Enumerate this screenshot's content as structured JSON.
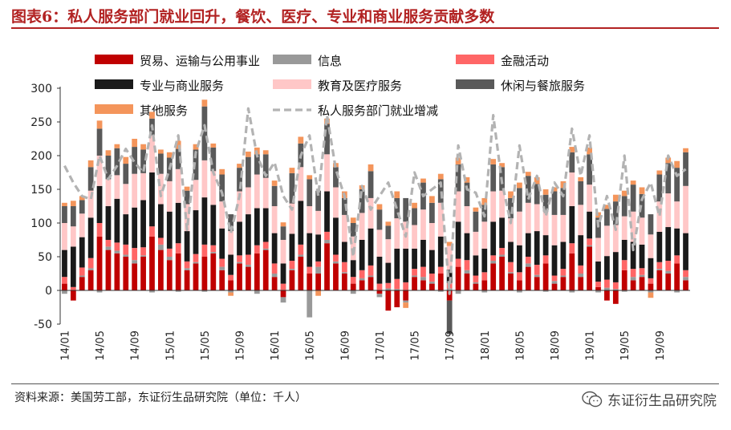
{
  "figure": {
    "title": "图表6：私人服务部门就业回升，餐饮、医疗、专业和商业服务贡献多数",
    "source": "资料来源：美国劳工部，东证衍生品研究院（单位：千人）",
    "watermark": "东证衍生品研究院"
  },
  "chart_data": {
    "type": "bar",
    "stacked": true,
    "ylim": [
      -50,
      300
    ],
    "yticks": [
      -50,
      0,
      50,
      100,
      150,
      200,
      250,
      300
    ],
    "xticks": [
      "14/01",
      "14/05",
      "14/09",
      "15/01",
      "15/05",
      "15/09",
      "16/01",
      "16/05",
      "16/09",
      "17/01",
      "17/05",
      "17/09",
      "18/01",
      "18/05",
      "18/09",
      "19/01",
      "19/05",
      "19/09"
    ],
    "xtick_every": 4,
    "categories": [
      "14/01",
      "14/02",
      "14/03",
      "14/04",
      "14/05",
      "14/06",
      "14/07",
      "14/08",
      "14/09",
      "14/10",
      "14/11",
      "14/12",
      "15/01",
      "15/02",
      "15/03",
      "15/04",
      "15/05",
      "15/06",
      "15/07",
      "15/08",
      "15/09",
      "15/10",
      "15/11",
      "15/12",
      "16/01",
      "16/02",
      "16/03",
      "16/04",
      "16/05",
      "16/06",
      "16/07",
      "16/08",
      "16/09",
      "16/10",
      "16/11",
      "16/12",
      "17/01",
      "17/02",
      "17/03",
      "17/04",
      "17/05",
      "17/06",
      "17/07",
      "17/08",
      "17/09",
      "17/10",
      "17/11",
      "17/12",
      "18/01",
      "18/02",
      "18/03",
      "18/04",
      "18/05",
      "18/06",
      "18/07",
      "18/08",
      "18/09",
      "18/10",
      "18/11",
      "18/12",
      "19/01",
      "19/02",
      "19/03",
      "19/04",
      "19/05",
      "19/06",
      "19/07",
      "19/08",
      "19/09",
      "19/10",
      "19/11",
      "19/12"
    ],
    "grid": false,
    "legend_position": "top",
    "series": [
      {
        "name": "贸易、运输与公用事业",
        "color": "#c00000",
        "values": [
          10,
          -15,
          20,
          30,
          80,
          60,
          55,
          50,
          40,
          50,
          80,
          60,
          45,
          55,
          30,
          40,
          50,
          55,
          30,
          15,
          40,
          35,
          55,
          60,
          20,
          -10,
          30,
          50,
          25,
          25,
          70,
          40,
          25,
          10,
          15,
          20,
          -5,
          -30,
          -25,
          -15,
          20,
          15,
          10,
          25,
          -15,
          35,
          25,
          10,
          15,
          40,
          50,
          25,
          15,
          35,
          20,
          40,
          10,
          20,
          55,
          20,
          65,
          5,
          -15,
          -20,
          30,
          15,
          20,
          10,
          30,
          25,
          40,
          15
        ]
      },
      {
        "name": "信息",
        "color": "#999999",
        "values": [
          -5,
          0,
          2,
          3,
          -3,
          5,
          4,
          3,
          5,
          2,
          -3,
          8,
          5,
          -2,
          3,
          2,
          -2,
          2,
          5,
          -3,
          2,
          3,
          -5,
          2,
          5,
          -8,
          2,
          3,
          -40,
          10,
          5,
          3,
          2,
          -5,
          3,
          2,
          -5,
          3,
          2,
          -3,
          2,
          5,
          3,
          -2,
          3,
          -5,
          5,
          2,
          -3,
          4,
          3,
          2,
          -3,
          5,
          3,
          -2,
          4,
          2,
          -3,
          5,
          2,
          -3,
          4,
          2,
          -2,
          5,
          3,
          -3,
          2,
          4,
          -3,
          5
        ]
      },
      {
        "name": "金融活动",
        "color": "#ff6666",
        "values": [
          10,
          5,
          12,
          15,
          20,
          10,
          12,
          15,
          18,
          12,
          15,
          10,
          12,
          15,
          10,
          12,
          18,
          10,
          12,
          8,
          10,
          15,
          12,
          10,
          15,
          10,
          12,
          15,
          10,
          8,
          12,
          10,
          15,
          10,
          12,
          15,
          10,
          8,
          15,
          12,
          10,
          15,
          12,
          10,
          8,
          12,
          15,
          10,
          12,
          8,
          10,
          15,
          12,
          10,
          15,
          12,
          8,
          10,
          15,
          12,
          10,
          8,
          12,
          10,
          15,
          12,
          10,
          8,
          10,
          15,
          12,
          10
        ]
      },
      {
        "name": "专业与商业服务",
        "color": "#1a1a1a",
        "values": [
          40,
          60,
          45,
          60,
          55,
          50,
          65,
          45,
          60,
          70,
          80,
          50,
          55,
          60,
          45,
          65,
          70,
          60,
          45,
          30,
          50,
          60,
          55,
          50,
          45,
          30,
          40,
          65,
          50,
          40,
          60,
          55,
          30,
          25,
          45,
          55,
          40,
          30,
          45,
          50,
          30,
          40,
          35,
          45,
          20,
          55,
          40,
          30,
          35,
          50,
          45,
          30,
          40,
          35,
          50,
          30,
          45,
          40,
          55,
          45,
          40,
          30,
          35,
          45,
          30,
          40,
          35,
          30,
          45,
          50,
          40,
          55
        ]
      },
      {
        "name": "教育及医疗服务",
        "color": "#ffc7c7",
        "values": [
          40,
          30,
          35,
          40,
          45,
          40,
          35,
          45,
          50,
          40,
          55,
          45,
          45,
          50,
          40,
          45,
          55,
          50,
          40,
          35,
          45,
          40,
          50,
          45,
          40,
          35,
          45,
          50,
          40,
          35,
          55,
          45,
          40,
          35,
          40,
          45,
          40,
          35,
          45,
          40,
          35,
          45,
          40,
          50,
          35,
          45,
          40,
          35,
          40,
          45,
          40,
          35,
          50,
          45,
          40,
          35,
          45,
          40,
          50,
          45,
          40,
          35,
          45,
          40,
          35,
          45,
          40,
          35,
          45,
          50,
          40,
          70
        ]
      },
      {
        "name": "休闲与餐旅服务",
        "color": "#595959",
        "values": [
          25,
          30,
          20,
          35,
          40,
          35,
          40,
          30,
          40,
          35,
          25,
          30,
          35,
          30,
          20,
          45,
          80,
          35,
          40,
          25,
          35,
          45,
          30,
          35,
          30,
          20,
          45,
          35,
          40,
          30,
          45,
          30,
          25,
          20,
          35,
          40,
          30,
          20,
          30,
          35,
          25,
          40,
          30,
          35,
          -50,
          40,
          35,
          30,
          25,
          40,
          35,
          30,
          35,
          40,
          30,
          25,
          35,
          40,
          30,
          35,
          45,
          30,
          25,
          35,
          30,
          40,
          35,
          30,
          40,
          45,
          50,
          50
        ]
      },
      {
        "name": "其他服务",
        "color": "#f4955b",
        "values": [
          5,
          8,
          6,
          10,
          12,
          8,
          6,
          10,
          12,
          8,
          10,
          6,
          8,
          12,
          6,
          8,
          10,
          6,
          8,
          -5,
          6,
          8,
          10,
          6,
          8,
          6,
          8,
          10,
          6,
          -8,
          8,
          6,
          10,
          8,
          6,
          10,
          8,
          6,
          10,
          -8,
          8,
          6,
          10,
          8,
          6,
          10,
          8,
          6,
          10,
          8,
          6,
          10,
          8,
          6,
          10,
          8,
          6,
          10,
          8,
          6,
          10,
          8,
          6,
          10,
          8,
          6,
          10,
          -8,
          6,
          8,
          10,
          6
        ]
      }
    ],
    "line": {
      "name": "私人服务部门就业增减",
      "color": "#b3b3b3",
      "values": [
        185,
        160,
        140,
        135,
        200,
        165,
        185,
        210,
        190,
        175,
        245,
        140,
        180,
        230,
        90,
        205,
        245,
        175,
        145,
        85,
        140,
        270,
        200,
        170,
        190,
        140,
        120,
        200,
        230,
        140,
        260,
        180,
        140,
        50,
        155,
        120,
        140,
        160,
        120,
        80,
        175,
        140,
        150,
        160,
        -5,
        215,
        150,
        145,
        110,
        260,
        160,
        100,
        215,
        135,
        170,
        110,
        160,
        140,
        240,
        170,
        230,
        95,
        140,
        90,
        200,
        60,
        135,
        160,
        110,
        200,
        170,
        180
      ]
    }
  }
}
